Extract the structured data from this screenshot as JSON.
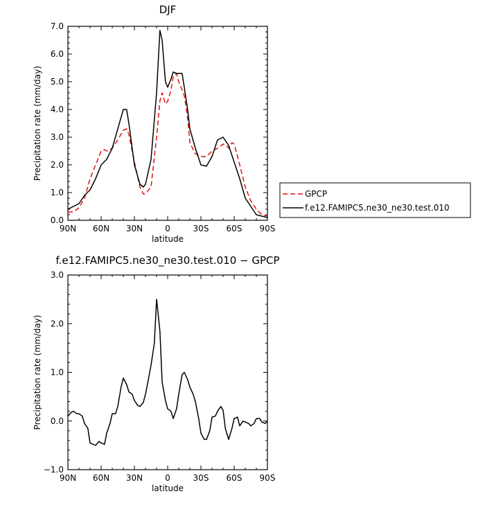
{
  "chart_data": [
    {
      "type": "line",
      "title": "DJF",
      "xlabel": "latitude",
      "ylabel": "Precipitation rate (mm/day)",
      "xlim": [
        90,
        -90
      ],
      "ylim": [
        0.0,
        7.0
      ],
      "x_ticks": [
        90,
        60,
        30,
        0,
        -30,
        -60,
        -90
      ],
      "x_tick_labels": [
        "90N",
        "60N",
        "30N",
        "0",
        "30S",
        "60S",
        "90S"
      ],
      "y_ticks": [
        0,
        1,
        2,
        3,
        4,
        5,
        6,
        7
      ],
      "y_tick_labels": [
        "0.0",
        "1.0",
        "2.0",
        "3.0",
        "4.0",
        "5.0",
        "6.0",
        "7.0"
      ],
      "legend": {
        "position": "right"
      },
      "series": [
        {
          "name": "GPCP",
          "color": "#e01010",
          "style": "dashed",
          "x": [
            90,
            85,
            80,
            75,
            70,
            65,
            60,
            57,
            55,
            50,
            45,
            40,
            37,
            35,
            30,
            25,
            22,
            20,
            15,
            10,
            7,
            5,
            2,
            0,
            -3,
            -5,
            -8,
            -10,
            -13,
            -15,
            -18,
            -20,
            -25,
            -30,
            -35,
            -40,
            -45,
            -50,
            -53,
            -55,
            -58,
            -60,
            -65,
            -70,
            -75,
            -80,
            -85,
            -90
          ],
          "y": [
            0.3,
            0.3,
            0.45,
            0.8,
            1.5,
            2.0,
            2.5,
            2.55,
            2.5,
            2.6,
            2.9,
            3.25,
            3.3,
            3.1,
            2.1,
            1.2,
            0.95,
            0.95,
            1.2,
            3.0,
            4.3,
            4.6,
            4.2,
            4.3,
            4.7,
            5.2,
            5.3,
            5.0,
            4.7,
            4.5,
            3.7,
            2.8,
            2.4,
            2.3,
            2.3,
            2.5,
            2.6,
            2.75,
            2.7,
            2.6,
            2.8,
            2.75,
            2.0,
            1.2,
            0.7,
            0.4,
            0.2,
            0.15
          ]
        },
        {
          "name": "f.e12.FAMIPC5.ne30_ne30.test.010",
          "color": "#000000",
          "style": "solid",
          "x": [
            90,
            85,
            80,
            75,
            70,
            65,
            60,
            55,
            50,
            45,
            40,
            37,
            35,
            30,
            25,
            22,
            20,
            15,
            10,
            7,
            5,
            2,
            0,
            -3,
            -5,
            -8,
            -10,
            -13,
            -15,
            -18,
            -20,
            -25,
            -30,
            -35,
            -40,
            -45,
            -50,
            -55,
            -60,
            -65,
            -70,
            -75,
            -80,
            -85,
            -90
          ],
          "y": [
            0.4,
            0.5,
            0.6,
            0.9,
            1.1,
            1.5,
            2.0,
            2.2,
            2.6,
            3.3,
            4.0,
            4.0,
            3.5,
            2.0,
            1.3,
            1.2,
            1.3,
            2.2,
            4.6,
            6.85,
            6.5,
            5.0,
            4.8,
            5.1,
            5.35,
            5.3,
            5.3,
            5.3,
            4.8,
            4.0,
            3.3,
            2.6,
            2.0,
            1.95,
            2.3,
            2.9,
            3.0,
            2.7,
            2.1,
            1.5,
            0.8,
            0.5,
            0.2,
            0.15,
            0.1
          ]
        }
      ]
    },
    {
      "type": "line",
      "title": "f.e12.FAMIPC5.ne30_ne30.test.010 − GPCP",
      "xlabel": "latitude",
      "ylabel": "Precipitation rate (mm/day)",
      "xlim": [
        90,
        -90
      ],
      "ylim": [
        -1.0,
        3.0
      ],
      "x_ticks": [
        90,
        60,
        30,
        0,
        -30,
        -60,
        -90
      ],
      "x_tick_labels": [
        "90N",
        "60N",
        "30N",
        "0",
        "30S",
        "60S",
        "90S"
      ],
      "y_ticks": [
        -1,
        0,
        1,
        2,
        3
      ],
      "y_tick_labels": [
        "−1.0",
        "0.0",
        "1.0",
        "2.0",
        "3.0"
      ],
      "series": [
        {
          "color": "#000000",
          "style": "solid",
          "x": [
            90,
            87,
            85,
            82,
            80,
            77,
            75,
            72,
            70,
            67,
            65,
            62,
            60,
            57,
            55,
            52,
            50,
            47,
            45,
            42,
            40,
            37,
            35,
            32,
            30,
            27,
            25,
            22,
            20,
            17,
            15,
            12,
            10,
            7,
            5,
            2,
            0,
            -3,
            -5,
            -8,
            -10,
            -13,
            -15,
            -18,
            -20,
            -23,
            -25,
            -28,
            -30,
            -33,
            -35,
            -38,
            -40,
            -43,
            -45,
            -48,
            -50,
            -52,
            -55,
            -58,
            -60,
            -63,
            -65,
            -68,
            -70,
            -73,
            -75,
            -78,
            -80,
            -83,
            -85,
            -88,
            -90
          ],
          "y": [
            0.1,
            0.18,
            0.2,
            0.15,
            0.15,
            0.1,
            -0.05,
            -0.15,
            -0.45,
            -0.48,
            -0.5,
            -0.42,
            -0.45,
            -0.48,
            -0.25,
            -0.05,
            0.15,
            0.15,
            0.3,
            0.7,
            0.88,
            0.75,
            0.6,
            0.55,
            0.42,
            0.32,
            0.3,
            0.38,
            0.55,
            0.9,
            1.15,
            1.6,
            2.5,
            1.85,
            0.8,
            0.42,
            0.25,
            0.2,
            0.05,
            0.25,
            0.55,
            0.95,
            1.0,
            0.85,
            0.7,
            0.55,
            0.4,
            0.05,
            -0.25,
            -0.38,
            -0.38,
            -0.2,
            0.08,
            0.1,
            0.2,
            0.3,
            0.22,
            -0.15,
            -0.38,
            -0.15,
            0.05,
            0.08,
            -0.1,
            0.0,
            -0.02,
            -0.05,
            -0.1,
            -0.05,
            0.05,
            0.05,
            -0.02,
            -0.05,
            0.0
          ]
        }
      ]
    }
  ]
}
